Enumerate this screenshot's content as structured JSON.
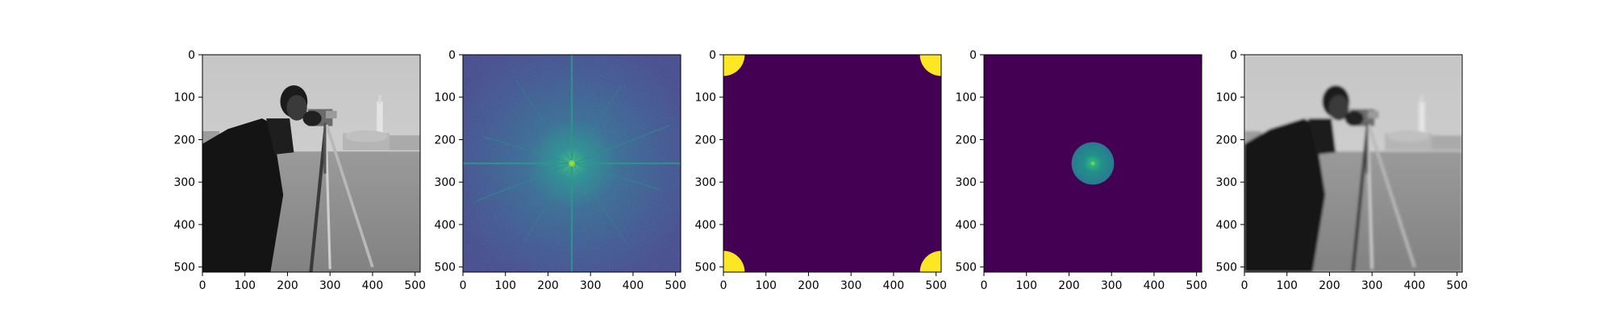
{
  "figure": {
    "background": "#ffffff"
  },
  "chart_data": [
    {
      "type": "image",
      "panel": "original",
      "content": "grayscale photograph: cameraman with tripod camera on a lawn, buildings in background",
      "colormap": "gray",
      "xlim": [
        0,
        512
      ],
      "ylim": [
        512,
        0
      ],
      "xticks": [
        0,
        100,
        200,
        300,
        400,
        500
      ],
      "yticks": [
        0,
        100,
        200,
        300,
        400,
        500
      ],
      "xlabel": "",
      "ylabel": "",
      "title": ""
    },
    {
      "type": "heatmap",
      "panel": "fft_magnitude",
      "content": "log-magnitude spectrum, shifted; bright center peak with streaks through center",
      "colormap": "viridis",
      "center": [
        256,
        256
      ],
      "xlim": [
        0,
        512
      ],
      "ylim": [
        512,
        0
      ],
      "xticks": [
        0,
        100,
        200,
        300,
        400,
        500
      ],
      "yticks": [
        0,
        100,
        200,
        300,
        400,
        500
      ],
      "xlabel": "",
      "ylabel": "",
      "title": ""
    },
    {
      "type": "heatmap",
      "panel": "mask",
      "content": "binary low-pass mask, unshifted: value 1 in quarter-circles at each corner, 0 elsewhere",
      "colormap": "viridis",
      "mask_radius": 50,
      "corners": [
        [
          0,
          0
        ],
        [
          512,
          0
        ],
        [
          0,
          512
        ],
        [
          512,
          512
        ]
      ],
      "xlim": [
        0,
        512
      ],
      "ylim": [
        512,
        0
      ],
      "xticks": [
        0,
        100,
        200,
        300,
        400,
        500
      ],
      "yticks": [
        0,
        100,
        200,
        300,
        400,
        500
      ],
      "xlabel": "",
      "ylabel": "",
      "title": ""
    },
    {
      "type": "heatmap",
      "panel": "masked_spectrum",
      "content": "spectrum kept only inside a central disk",
      "colormap": "viridis",
      "center": [
        256,
        256
      ],
      "disk_radius": 50,
      "xlim": [
        0,
        512
      ],
      "ylim": [
        512,
        0
      ],
      "xticks": [
        0,
        100,
        200,
        300,
        400,
        500
      ],
      "yticks": [
        0,
        100,
        200,
        300,
        400,
        500
      ],
      "xlabel": "",
      "ylabel": "",
      "title": ""
    },
    {
      "type": "image",
      "panel": "reconstruction",
      "content": "low-pass filtered (blurred, slightly ringing) grayscale cameraman image",
      "colormap": "gray",
      "xlim": [
        0,
        512
      ],
      "ylim": [
        512,
        0
      ],
      "xticks": [
        0,
        100,
        200,
        300,
        400,
        500
      ],
      "yticks": [
        0,
        100,
        200,
        300,
        400,
        500
      ],
      "xlabel": "",
      "ylabel": "",
      "title": ""
    }
  ],
  "colors": {
    "viridis_low": "#440154",
    "viridis_mid": "#3b528b",
    "viridis_teal": "#21918c",
    "viridis_green": "#5ec962",
    "viridis_high": "#fde725",
    "spectrum_bg": "#3f4c8c",
    "sky": "#c9c9c9",
    "grass": "#8f8f8f",
    "coat": "#151515"
  }
}
